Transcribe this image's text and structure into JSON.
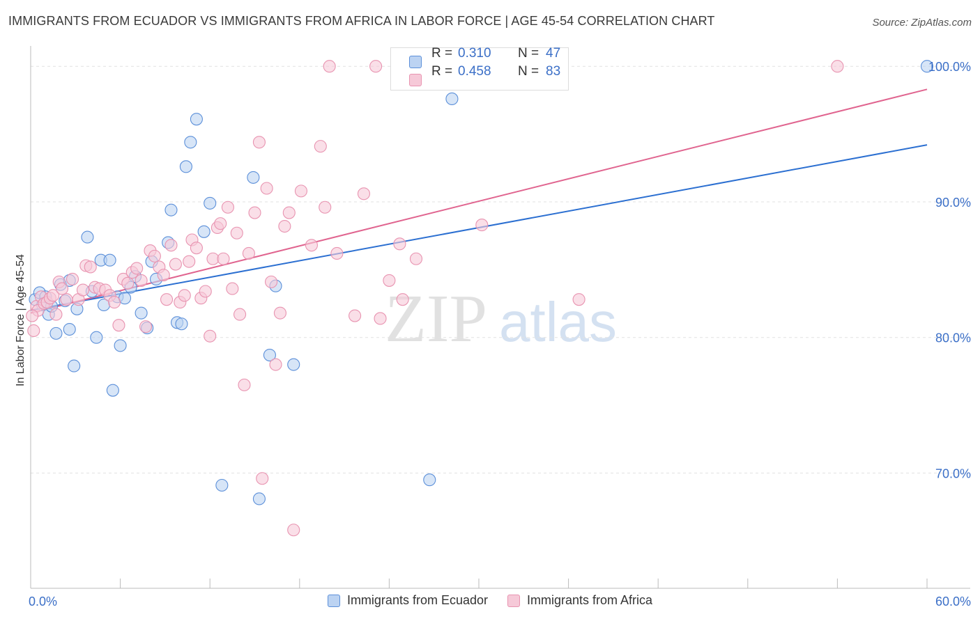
{
  "title": "IMMIGRANTS FROM ECUADOR VS IMMIGRANTS FROM AFRICA IN LABOR FORCE | AGE 45-54 CORRELATION CHART",
  "source": "Source: ZipAtlas.com",
  "watermark": {
    "zip": "ZIP",
    "atlas": "atlas"
  },
  "stats": [
    {
      "r_label": "R =",
      "r_value": "0.310",
      "n_label": "N =",
      "n_value": "47"
    },
    {
      "r_label": "R =",
      "r_value": "0.458",
      "n_label": "N =",
      "n_value": "83"
    }
  ],
  "chart_data": {
    "type": "scatter",
    "ylabel": "In Labor Force | Age 45-54",
    "xlim": [
      0,
      60
    ],
    "ylim": [
      61.5,
      101.5
    ],
    "x_tick_labels": [
      {
        "x": 0,
        "label": "0.0%"
      },
      {
        "x": 60,
        "label": "60.0%"
      }
    ],
    "x_minor_ticks": [
      0,
      6,
      12,
      18,
      24,
      30,
      36,
      42,
      48,
      54,
      60
    ],
    "y_ticks": [
      {
        "y": 70,
        "label": "70.0%"
      },
      {
        "y": 80,
        "label": "80.0%"
      },
      {
        "y": 90,
        "label": "90.0%"
      },
      {
        "y": 100,
        "label": "100.0%"
      }
    ],
    "grid": true,
    "legend_position": "bottom-center",
    "series": [
      {
        "name": "Immigrants from Ecuador",
        "color": "#5b8fd9",
        "fill": "#bcd3f2",
        "trend": {
          "x0": 0,
          "y0": 82.0,
          "x1": 60,
          "y1": 94.2,
          "color": "#2b6fd1"
        },
        "points": [
          [
            0.3,
            82.8
          ],
          [
            0.6,
            83.3
          ],
          [
            0.8,
            82.4
          ],
          [
            1.0,
            83.0
          ],
          [
            1.2,
            81.7
          ],
          [
            1.4,
            82.3
          ],
          [
            1.7,
            80.3
          ],
          [
            2.0,
            83.9
          ],
          [
            2.3,
            82.7
          ],
          [
            2.6,
            84.2
          ],
          [
            2.6,
            80.6
          ],
          [
            2.9,
            77.9
          ],
          [
            3.1,
            82.1
          ],
          [
            3.8,
            87.4
          ],
          [
            4.1,
            83.4
          ],
          [
            4.4,
            80.0
          ],
          [
            4.7,
            85.7
          ],
          [
            4.9,
            82.4
          ],
          [
            5.3,
            85.7
          ],
          [
            5.5,
            76.1
          ],
          [
            5.8,
            83.0
          ],
          [
            6.0,
            79.4
          ],
          [
            6.3,
            82.9
          ],
          [
            6.7,
            83.7
          ],
          [
            7.0,
            84.5
          ],
          [
            7.4,
            81.8
          ],
          [
            7.8,
            80.7
          ],
          [
            8.1,
            85.6
          ],
          [
            8.4,
            84.3
          ],
          [
            9.2,
            87.0
          ],
          [
            9.4,
            89.4
          ],
          [
            9.8,
            81.1
          ],
          [
            10.1,
            81.0
          ],
          [
            10.4,
            92.6
          ],
          [
            10.7,
            94.4
          ],
          [
            11.1,
            96.1
          ],
          [
            11.6,
            87.8
          ],
          [
            12.0,
            89.9
          ],
          [
            12.8,
            69.1
          ],
          [
            14.9,
            91.8
          ],
          [
            15.3,
            68.1
          ],
          [
            16.0,
            78.7
          ],
          [
            16.4,
            83.8
          ],
          [
            17.6,
            78.0
          ],
          [
            26.7,
            69.5
          ],
          [
            28.2,
            97.6
          ],
          [
            60.0,
            100.0
          ]
        ]
      },
      {
        "name": "Immigrants from Africa",
        "color": "#e893b0",
        "fill": "#f6c9d8",
        "trend": {
          "x0": 0,
          "y0": 81.8,
          "x1": 60,
          "y1": 98.3,
          "color": "#e0648f"
        },
        "points": [
          [
            0.2,
            80.5
          ],
          [
            0.4,
            82.3
          ],
          [
            0.5,
            82.0
          ],
          [
            0.7,
            83.0
          ],
          [
            0.9,
            82.5
          ],
          [
            1.1,
            82.6
          ],
          [
            1.3,
            82.9
          ],
          [
            1.5,
            83.1
          ],
          [
            1.7,
            81.7
          ],
          [
            1.9,
            84.1
          ],
          [
            2.1,
            83.6
          ],
          [
            2.4,
            82.8
          ],
          [
            2.8,
            84.3
          ],
          [
            3.2,
            82.8
          ],
          [
            3.5,
            83.5
          ],
          [
            3.7,
            85.3
          ],
          [
            4.0,
            85.2
          ],
          [
            4.3,
            83.7
          ],
          [
            4.6,
            83.6
          ],
          [
            5.0,
            83.5
          ],
          [
            5.3,
            83.1
          ],
          [
            5.6,
            82.6
          ],
          [
            5.9,
            80.9
          ],
          [
            6.2,
            84.3
          ],
          [
            6.5,
            84.0
          ],
          [
            6.8,
            84.8
          ],
          [
            7.1,
            85.1
          ],
          [
            7.4,
            84.2
          ],
          [
            7.7,
            80.8
          ],
          [
            8.0,
            86.4
          ],
          [
            8.3,
            86.0
          ],
          [
            8.6,
            85.2
          ],
          [
            8.9,
            84.6
          ],
          [
            9.1,
            82.8
          ],
          [
            9.4,
            86.8
          ],
          [
            9.7,
            85.4
          ],
          [
            10.0,
            82.6
          ],
          [
            10.3,
            83.1
          ],
          [
            10.6,
            85.6
          ],
          [
            10.8,
            87.2
          ],
          [
            11.1,
            86.6
          ],
          [
            11.4,
            82.9
          ],
          [
            11.7,
            83.4
          ],
          [
            12.0,
            80.1
          ],
          [
            12.2,
            85.8
          ],
          [
            12.5,
            88.1
          ],
          [
            12.7,
            88.4
          ],
          [
            12.9,
            85.8
          ],
          [
            13.2,
            89.6
          ],
          [
            13.5,
            83.6
          ],
          [
            13.8,
            87.7
          ],
          [
            14.0,
            81.7
          ],
          [
            14.3,
            76.5
          ],
          [
            14.6,
            86.2
          ],
          [
            15.0,
            89.2
          ],
          [
            15.3,
            94.4
          ],
          [
            15.5,
            69.6
          ],
          [
            15.8,
            91.0
          ],
          [
            16.1,
            84.1
          ],
          [
            16.4,
            78.0
          ],
          [
            16.7,
            81.8
          ],
          [
            17.0,
            88.2
          ],
          [
            17.3,
            89.2
          ],
          [
            17.6,
            65.8
          ],
          [
            18.1,
            90.8
          ],
          [
            18.8,
            86.8
          ],
          [
            19.4,
            94.1
          ],
          [
            19.7,
            89.6
          ],
          [
            20.0,
            100.0
          ],
          [
            20.5,
            86.2
          ],
          [
            21.7,
            81.6
          ],
          [
            22.3,
            90.6
          ],
          [
            23.1,
            100.0
          ],
          [
            23.4,
            81.4
          ],
          [
            24.0,
            84.2
          ],
          [
            24.7,
            86.9
          ],
          [
            24.9,
            82.8
          ],
          [
            25.8,
            85.8
          ],
          [
            29.4,
            100.0
          ],
          [
            30.2,
            88.3
          ],
          [
            36.7,
            82.8
          ],
          [
            54.0,
            100.0
          ],
          [
            0.1,
            81.6
          ]
        ]
      }
    ]
  }
}
